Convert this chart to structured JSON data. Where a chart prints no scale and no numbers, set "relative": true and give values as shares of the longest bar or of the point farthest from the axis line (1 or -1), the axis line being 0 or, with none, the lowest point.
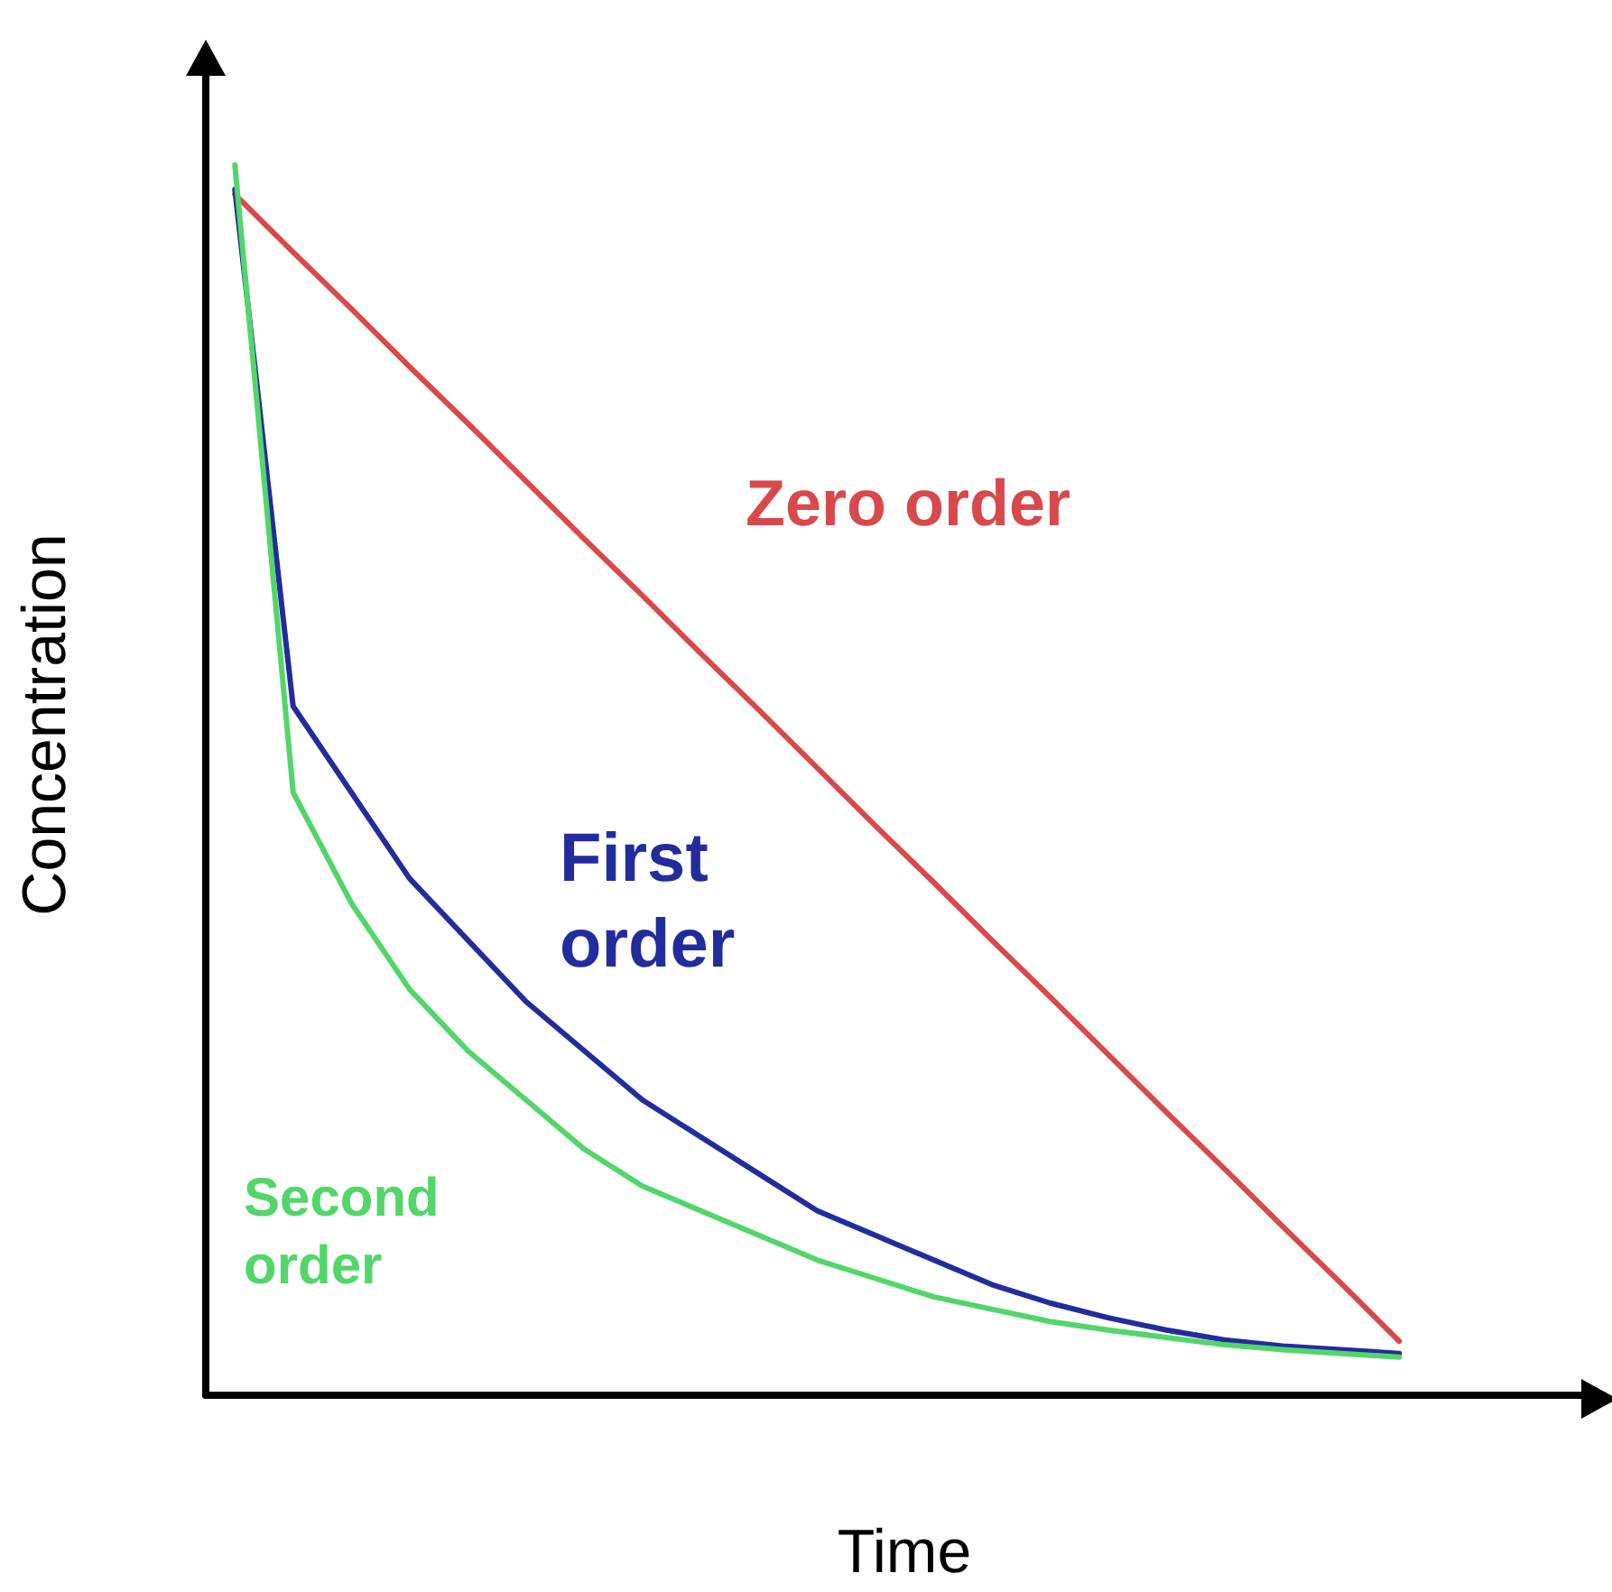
{
  "chart_data": {
    "type": "line",
    "relative": true,
    "xlabel": "Time",
    "ylabel": "Concentration",
    "legend": false,
    "grid": false,
    "marker": "none",
    "line_style": "solid",
    "categories": [
      null,
      null,
      null,
      null,
      null,
      null,
      null,
      null,
      null,
      null,
      null,
      null,
      null,
      null,
      null,
      null,
      null,
      null,
      null,
      null,
      null,
      null,
      null,
      null
    ],
    "series": [
      {
        "name": "Zero order",
        "color": "#d9494b",
        "values": [
          0.976,
          0.929,
          0.883,
          0.836,
          0.79,
          0.743,
          0.696,
          0.65,
          0.603,
          0.557,
          0.51,
          0.463,
          0.417,
          0.37,
          0.324,
          0.277,
          0.23,
          0.184,
          0.137,
          0.091,
          0.044,
          null,
          null,
          null
        ]
      },
      {
        "name": "First order",
        "color": "#232c9c",
        "values": [
          0.98,
          0.56,
          0.49,
          0.42,
          0.37,
          0.32,
          0.28,
          0.24,
          0.21,
          0.18,
          0.15,
          0.13,
          0.11,
          0.09,
          0.075,
          0.063,
          0.053,
          0.045,
          0.04,
          0.037,
          0.034,
          null,
          null,
          null
        ]
      },
      {
        "name": "Second order",
        "color": "#52d66a",
        "values": [
          1,
          0.49,
          0.4,
          0.33,
          0.28,
          0.24,
          0.2,
          0.17,
          0.15,
          0.13,
          0.11,
          0.095,
          0.08,
          0.07,
          0.06,
          0.053,
          0.047,
          0.041,
          0.037,
          0.034,
          0.031,
          null,
          null,
          null
        ]
      }
    ]
  }
}
